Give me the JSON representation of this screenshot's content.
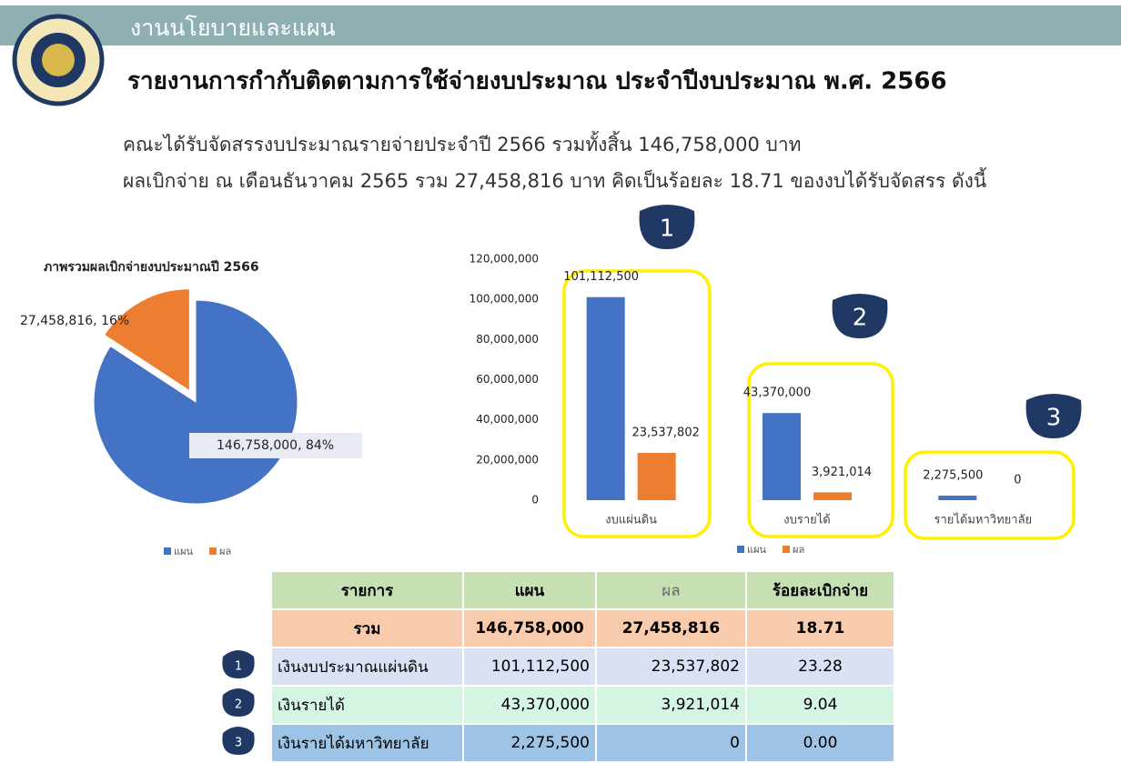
{
  "header": {
    "unit": "งานนโยบายและแผน",
    "title": "รายงานการกำกับติดตามการใช้จ่ายงบประมาณ ประจำปีงบประมาณ พ.ศ. 2566"
  },
  "summary": [
    "คณะได้รับจัดสรรงบประมาณรายจ่ายประจำปี 2566 รวมทั้งสิ้น 146,758,000 บาท",
    "ผลเบิกจ่าย ณ เดือนธันวาคม 2565 รวม 27,458,816 บาท คิดเป็นร้อยละ 18.71 ของงบได้รับจัดสรร ดังนี้"
  ],
  "chart_data": [
    {
      "type": "pie",
      "title": "ภาพรวมผลเบิกจ่ายงบประมาณปี 2566",
      "categories": [
        "แผน",
        "ผล"
      ],
      "values": [
        146758000,
        27458816
      ],
      "value_labels": [
        "146,758,000, 84%",
        "27,458,816, 16%"
      ],
      "colors": [
        "#4472c4",
        "#ed7d31"
      ],
      "legend": "bottom"
    },
    {
      "type": "bar",
      "categories": [
        "งบแผ่นดิน",
        "งบรายได้",
        "รายได้มหาวิทยาลัย"
      ],
      "series": [
        {
          "name": "แผน",
          "color": "#4472c4",
          "values": [
            101112500,
            43370000,
            2275500
          ],
          "value_labels": [
            "101,112,500",
            "43,370,000",
            "2,275,500"
          ]
        },
        {
          "name": "ผล",
          "color": "#ed7d31",
          "values": [
            23537802,
            3921014,
            0
          ],
          "value_labels": [
            "23,537,802",
            "3,921,014",
            "0"
          ]
        }
      ],
      "ylim": [
        0,
        120000000
      ],
      "yticks": [
        0,
        {
          "value": 20000000,
          "label": "20,000,000"
        },
        {
          "value": 40000000,
          "label": "40,000,000"
        },
        {
          "value": 60000000,
          "label": "60,000,000"
        },
        {
          "value": 80000000,
          "label": "80,000,000"
        },
        {
          "value": 100000000,
          "label": "100,000,000"
        },
        {
          "value": 120000000,
          "label": "120,000,000"
        }
      ],
      "grid": false,
      "legend": "bottom",
      "annotations": [
        "1",
        "2",
        "3"
      ]
    }
  ],
  "table": {
    "header": [
      "รายการ",
      "แผน",
      "ผล",
      "ร้อยละเบิกจ่าย"
    ],
    "rows": [
      [
        "รวม",
        "146,758,000",
        "27,458,816",
        "18.71"
      ],
      [
        "เงินงบประมาณแผ่นดิน",
        "101,112,500",
        "23,537,802",
        "23.28"
      ],
      [
        "เงินรายได้",
        "43,370,000",
        "3,921,014",
        "9.04"
      ],
      [
        "เงินรายได้มหาวิทยาลัย",
        "2,275,500",
        "0",
        "0.00"
      ]
    ],
    "badges": [
      "1",
      "2",
      "3"
    ]
  }
}
